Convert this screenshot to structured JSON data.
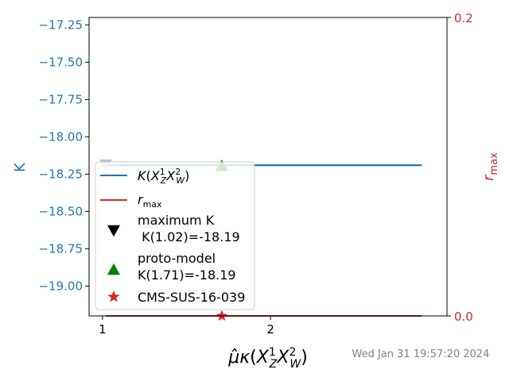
{
  "chart_data": {
    "type": "line",
    "title": "",
    "xlabel": "μ̂κ(X¹_Z X²_W)",
    "ylabel": "K",
    "y2label": "r_max",
    "xlim": [
      0.92,
      3.05
    ],
    "ylim": [
      -19.2,
      -17.2
    ],
    "y2lim": [
      0.0,
      0.2
    ],
    "x_ticks": [
      "1",
      "2"
    ],
    "y_ticks": [
      "−17.25",
      "−17.50",
      "−17.75",
      "−18.00",
      "−18.25",
      "−18.50",
      "−18.75",
      "−19.00"
    ],
    "y2_ticks": [
      "0.0",
      "0.2"
    ],
    "colors": {
      "K": "#1f77b4",
      "r_max": "#d62728",
      "axis_left": "#1f77b4",
      "axis_right": "#d62728"
    },
    "series": [
      {
        "key": "K",
        "label": "K(X¹_Z X²_W)",
        "axis": "left",
        "x": [
          1.02,
          2.9
        ],
        "y": [
          -18.19,
          -18.19
        ]
      },
      {
        "key": "rmax",
        "label": "r_max",
        "axis": "right",
        "x": [
          1.02,
          2.9
        ],
        "y": [
          0.0,
          0.0
        ]
      }
    ],
    "markers": [
      {
        "name": "maximum-k-marker",
        "symbol": "triangle-down",
        "x": 1.02,
        "y": -18.19,
        "color": "#c0c0c0"
      },
      {
        "name": "proto-model-marker",
        "symbol": "triangle-up",
        "x": 1.71,
        "y": -18.19,
        "color": "#008000"
      },
      {
        "name": "cms-marker",
        "symbol": "star",
        "x": 1.71,
        "y2": 0.0,
        "color": "#d62728"
      }
    ],
    "legend": {
      "placement": "lower-left",
      "entries": [
        {
          "symbol": "line",
          "color": "#1f77b4",
          "text": "K(X¹_Z X²_W)"
        },
        {
          "symbol": "line",
          "color": "#d62728",
          "text": "r_max"
        },
        {
          "symbol": "triangle-down",
          "color": "#000000",
          "lines": [
            "maximum K",
            " K(1.02)=-18.19"
          ]
        },
        {
          "symbol": "triangle-up",
          "color": "#008000",
          "lines": [
            "proto-model",
            "K(1.71)=-18.19"
          ]
        },
        {
          "symbol": "star",
          "color": "#d62728",
          "text": "CMS-SUS-16-039"
        }
      ]
    },
    "timestamp": "Wed Jan 31 19:57:20 2024"
  }
}
